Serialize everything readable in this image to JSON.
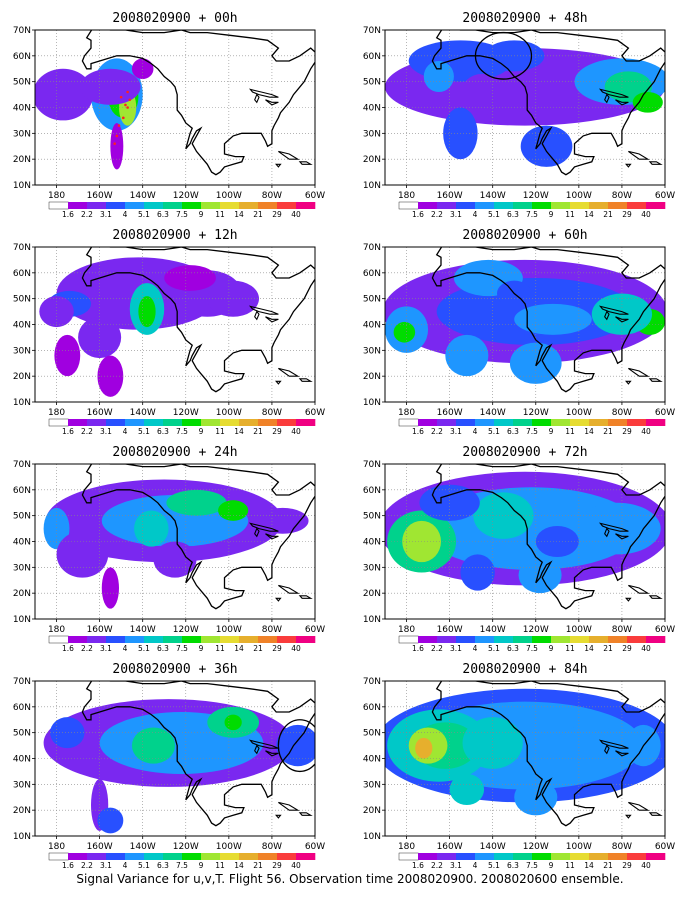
{
  "colorbar": {
    "labels": [
      "1.6",
      "2.2",
      "3.1",
      "4",
      "5.1",
      "6.3",
      "7.5",
      "9",
      "11",
      "14",
      "21",
      "29",
      "40"
    ],
    "colors": [
      "#ffffff",
      "#a000e0",
      "#7a28f0",
      "#2850ff",
      "#1e96ff",
      "#00c8c8",
      "#00d28c",
      "#00dc00",
      "#a0e632",
      "#e6dc32",
      "#e6af2d",
      "#f08228",
      "#fa3c3c",
      "#f00082"
    ]
  },
  "axes": {
    "x_ticks": [
      "180",
      "160W",
      "140W",
      "120W",
      "100W",
      "80W",
      "60W"
    ],
    "y_ticks": [
      "70N",
      "60N",
      "50N",
      "40N",
      "30N",
      "20N",
      "10N"
    ],
    "lon_range": [
      170,
      300
    ],
    "lat_range": [
      10,
      70
    ]
  },
  "panels": [
    {
      "title": "2008020900 + 00h",
      "circle": null,
      "track": true,
      "blobs": [
        [
          208,
          45,
          12,
          14,
          4
        ],
        [
          211,
          44,
          7,
          8,
          7
        ],
        [
          213,
          40,
          4,
          7,
          8
        ],
        [
          183,
          45,
          14,
          10,
          2
        ],
        [
          205,
          48,
          14,
          7,
          2
        ],
        [
          220,
          55,
          5,
          4,
          1
        ],
        [
          208,
          25,
          3,
          9,
          1
        ]
      ]
    },
    {
      "title": "2008020900 + 12h",
      "circle": null,
      "track": false,
      "blobs": [
        [
          218,
          52,
          38,
          14,
          2
        ],
        [
          222,
          46,
          8,
          10,
          5
        ],
        [
          222,
          45,
          4,
          6,
          7
        ],
        [
          186,
          48,
          10,
          5,
          3
        ],
        [
          180,
          45,
          8,
          6,
          2
        ],
        [
          200,
          35,
          10,
          8,
          2
        ],
        [
          185,
          28,
          6,
          8,
          1
        ],
        [
          205,
          20,
          6,
          8,
          1
        ],
        [
          250,
          52,
          16,
          9,
          2
        ],
        [
          262,
          50,
          12,
          7,
          2
        ],
        [
          242,
          58,
          12,
          5,
          1
        ]
      ]
    },
    {
      "title": "2008020900 + 24h",
      "circle": null,
      "track": false,
      "blobs": [
        [
          230,
          48,
          55,
          16,
          2
        ],
        [
          235,
          48,
          34,
          10,
          4
        ],
        [
          245,
          55,
          14,
          5,
          6
        ],
        [
          262,
          52,
          7,
          4,
          7
        ],
        [
          224,
          45,
          8,
          7,
          5
        ],
        [
          180,
          45,
          6,
          8,
          4
        ],
        [
          192,
          35,
          12,
          9,
          2
        ],
        [
          235,
          33,
          10,
          7,
          2
        ],
        [
          205,
          22,
          4,
          8,
          1
        ],
        [
          285,
          48,
          12,
          5,
          2
        ]
      ]
    },
    {
      "title": "2008020900 + 36h",
      "circle": [
        293,
        45,
        10,
        10
      ],
      "track": false,
      "blobs": [
        [
          232,
          46,
          58,
          17,
          2
        ],
        [
          238,
          46,
          38,
          12,
          4
        ],
        [
          225,
          45,
          10,
          7,
          6
        ],
        [
          262,
          54,
          12,
          6,
          6
        ],
        [
          262,
          54,
          4,
          3,
          7
        ],
        [
          292,
          45,
          10,
          8,
          3
        ],
        [
          200,
          22,
          4,
          10,
          2
        ],
        [
          205,
          16,
          6,
          5,
          3
        ],
        [
          185,
          50,
          8,
          6,
          3
        ]
      ]
    },
    {
      "title": "2008020900 + 48h",
      "circle": [
        225,
        60,
        13,
        9
      ],
      "track": false,
      "blobs": [
        [
          235,
          48,
          65,
          15,
          2
        ],
        [
          205,
          58,
          24,
          8,
          3
        ],
        [
          230,
          60,
          14,
          6,
          3
        ],
        [
          280,
          50,
          22,
          9,
          4
        ],
        [
          283,
          48,
          11,
          6,
          6
        ],
        [
          292,
          42,
          7,
          4,
          7
        ],
        [
          195,
          52,
          7,
          6,
          4
        ],
        [
          205,
          30,
          8,
          10,
          3
        ],
        [
          245,
          25,
          12,
          8,
          3
        ],
        [
          215,
          45,
          10,
          8,
          2
        ]
      ]
    },
    {
      "title": "2008020900 + 60h",
      "circle": null,
      "track": false,
      "blobs": [
        [
          235,
          45,
          66,
          20,
          2
        ],
        [
          240,
          45,
          46,
          13,
          3
        ],
        [
          180,
          38,
          10,
          9,
          4
        ],
        [
          179,
          37,
          5,
          4,
          7
        ],
        [
          218,
          58,
          16,
          7,
          4
        ],
        [
          248,
          42,
          18,
          6,
          4
        ],
        [
          293,
          41,
          7,
          5,
          7
        ],
        [
          280,
          44,
          14,
          8,
          5
        ],
        [
          208,
          28,
          10,
          8,
          4
        ],
        [
          240,
          25,
          12,
          8,
          4
        ],
        [
          230,
          52,
          8,
          5,
          3
        ]
      ]
    },
    {
      "title": "2008020900 + 72h",
      "circle": null,
      "track": false,
      "blobs": [
        [
          235,
          45,
          68,
          22,
          2
        ],
        [
          238,
          45,
          50,
          16,
          4
        ],
        [
          187,
          40,
          16,
          12,
          6
        ],
        [
          187,
          40,
          9,
          8,
          8
        ],
        [
          225,
          50,
          14,
          9,
          5
        ],
        [
          278,
          45,
          20,
          10,
          4
        ],
        [
          250,
          40,
          10,
          6,
          3
        ],
        [
          242,
          27,
          10,
          7,
          4
        ],
        [
          213,
          28,
          8,
          7,
          3
        ],
        [
          200,
          55,
          14,
          7,
          3
        ]
      ]
    },
    {
      "title": "2008020900 + 84h",
      "circle": null,
      "track": false,
      "blobs": [
        [
          235,
          45,
          70,
          22,
          3
        ],
        [
          235,
          45,
          55,
          17,
          4
        ],
        [
          195,
          45,
          24,
          14,
          5
        ],
        [
          198,
          45,
          15,
          9,
          6
        ],
        [
          190,
          45,
          9,
          7,
          8
        ],
        [
          188,
          44,
          4,
          4,
          10
        ],
        [
          220,
          46,
          14,
          10,
          5
        ],
        [
          265,
          44,
          16,
          9,
          4
        ],
        [
          290,
          45,
          8,
          8,
          4
        ],
        [
          240,
          25,
          10,
          7,
          4
        ],
        [
          208,
          28,
          8,
          6,
          5
        ]
      ]
    }
  ],
  "caption": "Signal Variance for u,v,T. Flight 56. Observation time 2008020900. 2008020600 ensemble."
}
